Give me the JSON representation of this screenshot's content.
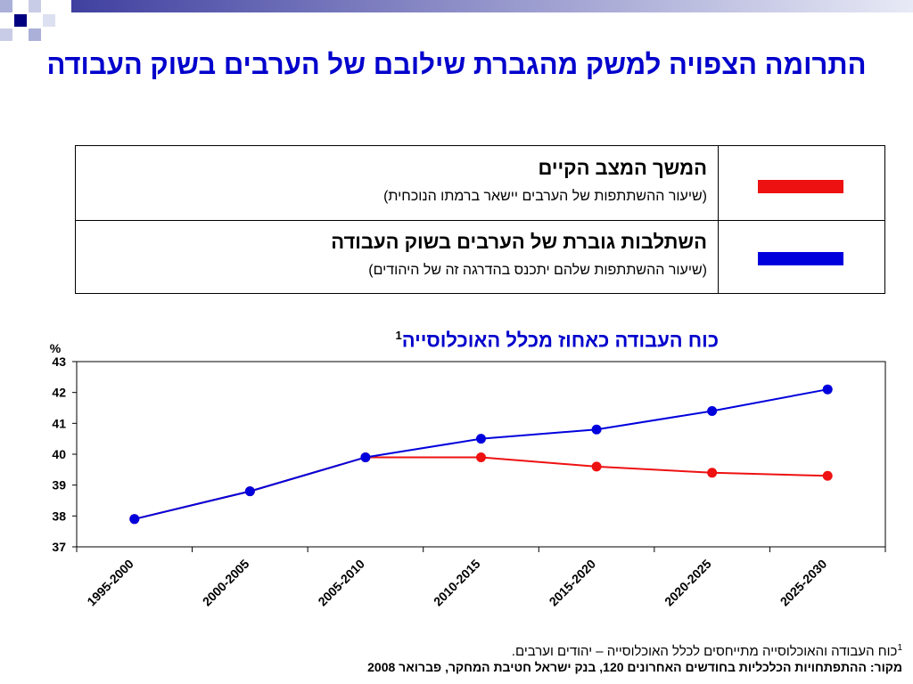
{
  "title": "התרומה הצפויה למשק מהגברת שילובם של הערבים בשוק העבודה",
  "legend": [
    {
      "main": "המשך המצב הקיים",
      "sub": "(שיעור ההשתתפות של הערבים יישאר ברמתו הנוכחית)",
      "color": "#ee1111"
    },
    {
      "main": "השתלבות גוברת של הערבים בשוק העבודה",
      "sub": "(שיעור ההשתתפות שלהם יתכנס בהדרגה זה של היהודים)",
      "color": "#0000dd"
    }
  ],
  "chart_title": "כוח העבודה כאחוז מכלל האוכלוסייה",
  "chart_title_sup": "1",
  "footnote": {
    "sup": "1",
    "text": "כוח העבודה והאוכלוסייה מתייחסים לכלל האוכלוסייה – יהודים וערבים."
  },
  "source": "מקור: ההתפתחויות הכלכליות בחודשים האחרונים 120, בנק ישראל חטיבת המחקר, פברואר 2008",
  "chart_data": {
    "type": "line",
    "ylabel": "%",
    "ylim": [
      37,
      43
    ],
    "yticks": [
      37,
      38,
      39,
      40,
      41,
      42,
      43
    ],
    "categories": [
      "1995-2000",
      "2000-2005",
      "2005-2010",
      "2010-2015",
      "2015-2020",
      "2020-2025",
      "2025-2030"
    ],
    "series": [
      {
        "color": "#ee1111",
        "values": [
          37.9,
          38.8,
          39.9,
          39.9,
          39.6,
          39.4,
          39.3
        ]
      },
      {
        "color": "#0000dd",
        "values": [
          37.9,
          38.8,
          39.9,
          40.5,
          40.8,
          41.4,
          42.1
        ]
      }
    ],
    "grid": false
  }
}
